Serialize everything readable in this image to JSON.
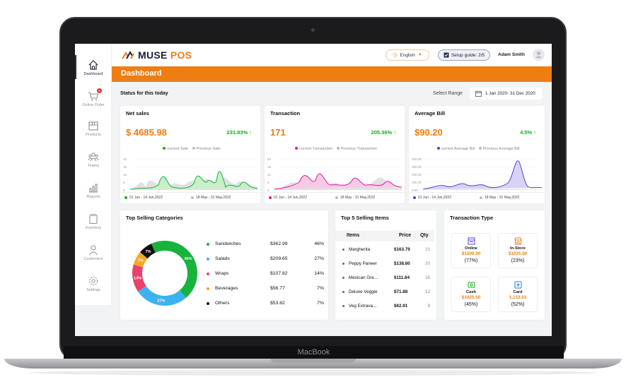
{
  "device": {
    "brand_label": "MacBook"
  },
  "colors": {
    "accent": "#ee7d12",
    "navy": "#1b1f3b",
    "green": "#18a81f",
    "pink": "#e0189c",
    "purple": "#5a3fd6"
  },
  "sidebar": {
    "items": [
      {
        "label": "Dashboard",
        "icon": "home-icon"
      },
      {
        "label": "Online Order",
        "icon": "cart-icon",
        "badge": "5"
      },
      {
        "label": "Products",
        "icon": "box-icon"
      },
      {
        "label": "Teams",
        "icon": "team-icon"
      },
      {
        "label": "Reports",
        "icon": "chart-icon"
      },
      {
        "label": "Inventory",
        "icon": "clipboard-icon"
      },
      {
        "label": "Customers",
        "icon": "user-icon"
      },
      {
        "label": "Settings",
        "icon": "gear-icon"
      }
    ]
  },
  "header": {
    "logo_muse": "MUSE",
    "logo_pos": "POS",
    "language": "English",
    "setup_guide": "Setup guide: 2/5",
    "user_name": "Adam Smith"
  },
  "page": {
    "title": "Dashboard",
    "status_label": "Status for this today",
    "range_label": "Select Range",
    "range_value": "1 Jan 2020- 31 Dec 2020"
  },
  "stats": [
    {
      "title": "Net sales",
      "value": "$ 4685.98",
      "change": "231.83% ↑",
      "legend_current": "current Sale",
      "legend_prev": "Previous Sale",
      "date_current": "01 Jun - 14 Jun,2022",
      "date_prev": "18 May - 31 May,2022",
      "yticks": [
        "24",
        "18",
        "12",
        "6",
        "0"
      ]
    },
    {
      "title": "Transaction",
      "value": "171",
      "change": "205.36% ↑",
      "legend_current": "current Transaction",
      "legend_prev": "Previous Transaction",
      "date_current": "01 Jun - 14 Jun,2022",
      "date_prev": "18 May - 31 May,2022",
      "yticks": [
        "24",
        "18",
        "12",
        "6",
        "0"
      ]
    },
    {
      "title": "Average Bill",
      "value": "$90.20",
      "change": "4.5% ↑",
      "legend_current": "current Average Bill",
      "legend_prev": "Previous Average Bill",
      "date_current": "01 Jun - 14 Jun,2022",
      "date_prev": "18 May - 31 May,2022",
      "yticks": [
        "400.00",
        "300.00",
        "200.00",
        "100.00",
        "0.00"
      ]
    }
  ],
  "categories": {
    "title": "Top Selling Categories",
    "rows": [
      {
        "name": "Sandwiches",
        "amount": "$362.99",
        "pct": "46%",
        "color": "#18b33c"
      },
      {
        "name": "Salads",
        "amount": "$209.65",
        "pct": "27%",
        "color": "#3bb3f0"
      },
      {
        "name": "Wraps",
        "amount": "$107.82",
        "pct": "14%",
        "color": "#e8416b"
      },
      {
        "name": "Beverages",
        "amount": "$56.77",
        "pct": "7%",
        "color": "#f3a928"
      },
      {
        "name": "Others",
        "amount": "$53.82",
        "pct": "7%",
        "color": "#111111"
      }
    ]
  },
  "chart_data": {
    "type": "pie",
    "categories": [
      "Sandwiches",
      "Salads",
      "Wraps",
      "Beverages",
      "Others"
    ],
    "values": [
      46,
      27,
      14,
      7,
      7
    ],
    "labels": [
      "46%",
      "27%",
      "14%",
      "7%",
      "7%"
    ]
  },
  "items": {
    "title": "Top 5 Selling Items",
    "col_items": "Items",
    "col_price": "Price",
    "col_qty": "Qty",
    "rows": [
      {
        "name": "Margherita",
        "price": "$163.79",
        "qty": "21"
      },
      {
        "name": "Peppy Paneer",
        "price": "$138.80",
        "qty": "20"
      },
      {
        "name": "Mexican Gre...",
        "price": "$111.84",
        "qty": "16"
      },
      {
        "name": "Deluxe Veggie",
        "price": "$71.88",
        "qty": "12"
      },
      {
        "name": "Veg Extrava...",
        "price": "$62.91",
        "qty": "9"
      }
    ]
  },
  "transaction_type": {
    "title": "Transaction Type",
    "tiles": [
      {
        "name": "Online",
        "value": "$1200.30",
        "pct": "(77%)",
        "icon": "online-store-icon"
      },
      {
        "name": "In-Store",
        "value": "$1025.50",
        "pct": "(23%)",
        "icon": "storefront-icon"
      },
      {
        "name": "Cash",
        "value": "$1025.50",
        "pct": "(45%)",
        "icon": "cash-icon"
      },
      {
        "name": "Card",
        "value": "1,133.03",
        "pct": "(52%)",
        "icon": "card-icon"
      }
    ]
  }
}
